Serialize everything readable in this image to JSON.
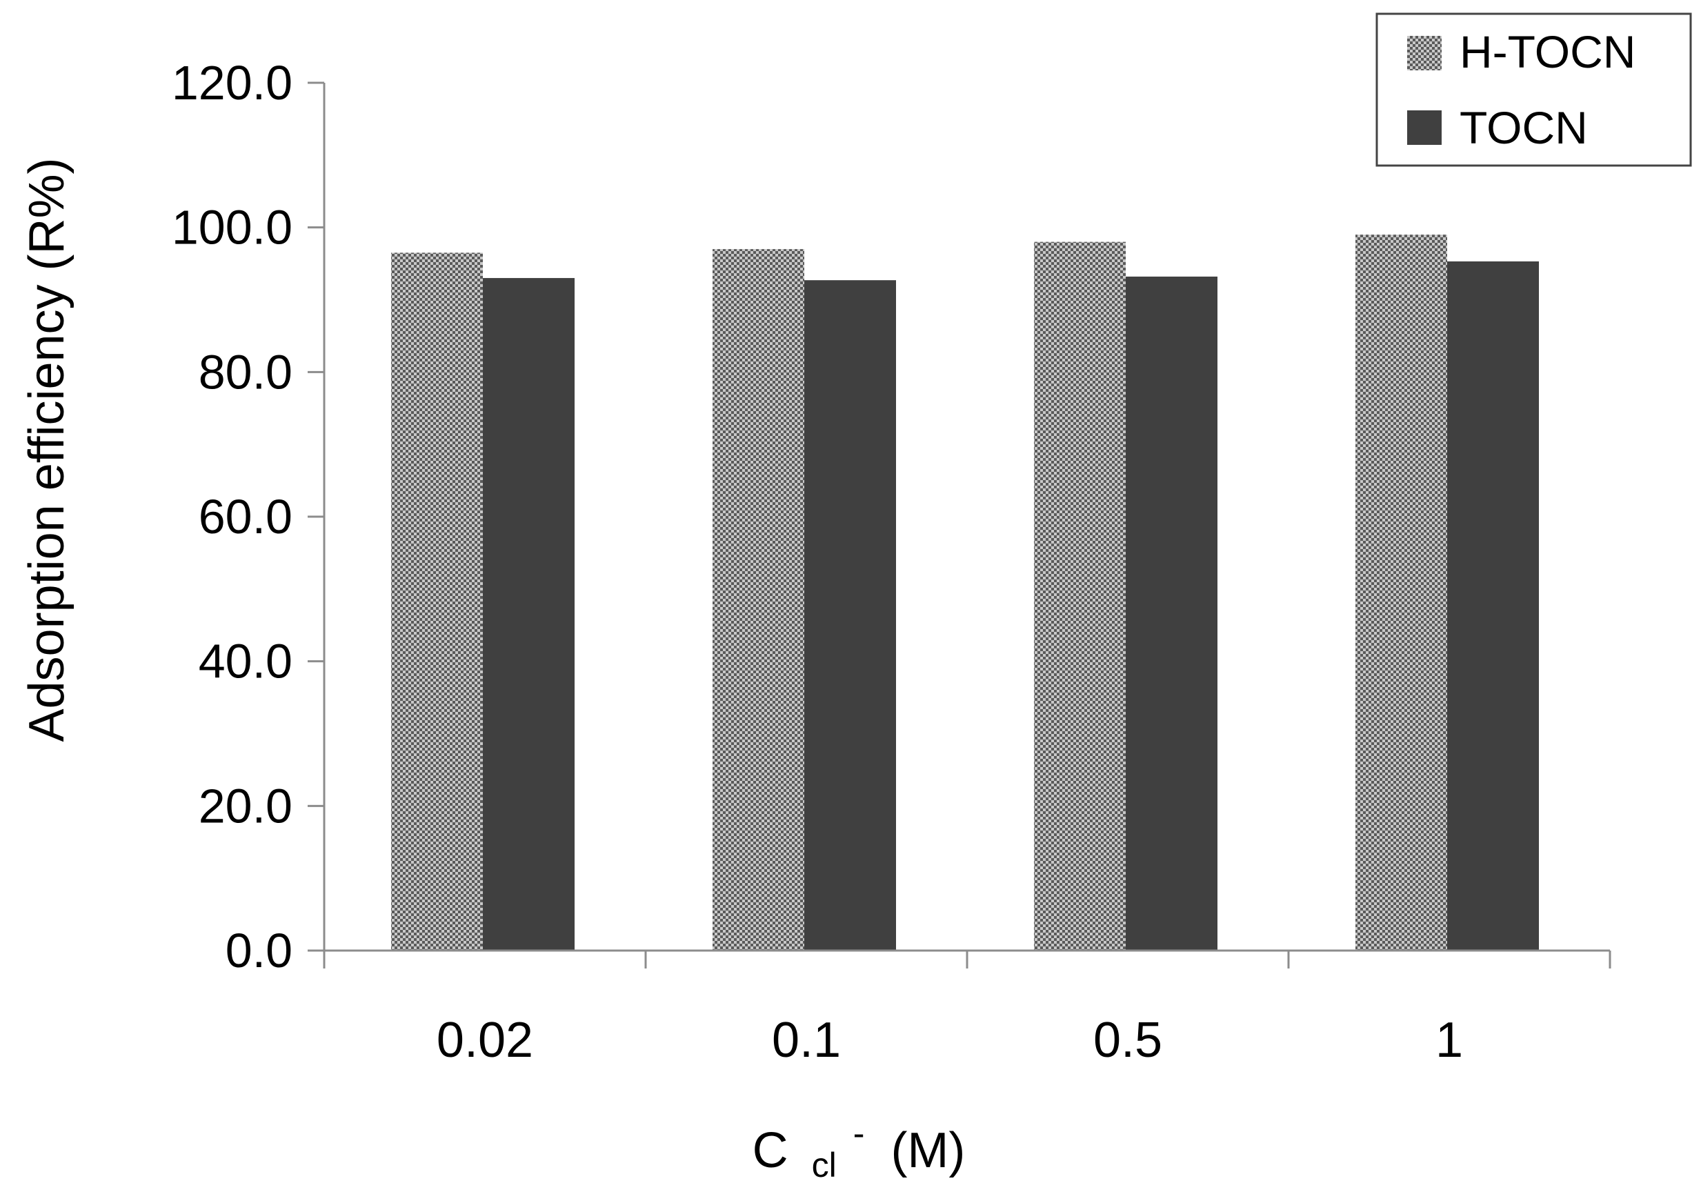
{
  "chart_data": {
    "type": "bar",
    "title": "",
    "categories": [
      "0.02",
      "0.1",
      "0.5",
      "1"
    ],
    "series": [
      {
        "name": "H-TOCN",
        "values": [
          96.5,
          97.0,
          98.0,
          99.0
        ],
        "color": "#8a8a8a",
        "pattern": "checker"
      },
      {
        "name": "TOCN",
        "values": [
          93.0,
          92.7,
          93.2,
          95.3
        ],
        "color": "#404040",
        "pattern": "solid"
      }
    ],
    "ylabel": "Adsorption efficiency (R%)",
    "xlabel": {
      "main": "C",
      "subscript": "cl",
      "superscript": "-",
      "suffix": "(M)"
    },
    "ylim": [
      0,
      120
    ],
    "yticks": [
      0,
      20,
      40,
      60,
      80,
      100,
      120
    ],
    "ytick_labels": [
      "0.0",
      "20.0",
      "40.0",
      "60.0",
      "80.0",
      "100.0",
      "120.0"
    ],
    "grid": false,
    "legend_position": "top-right",
    "axis_color": "#8c8c8c",
    "legend_border_color": "#444444"
  }
}
